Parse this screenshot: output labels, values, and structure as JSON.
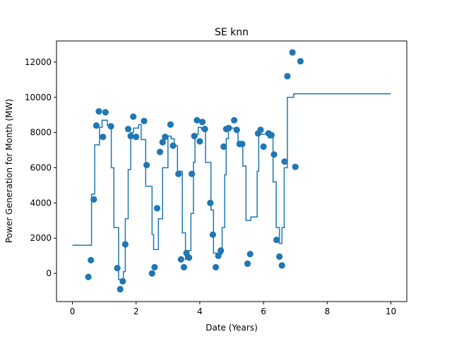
{
  "chart_data": {
    "type": "scatter",
    "title": "SE knn",
    "xlabel": "Date (Years)",
    "ylabel": "Power Generation for Month (MW)",
    "xlim": [
      -0.5,
      10.5
    ],
    "ylim": [
      -1600,
      13200
    ],
    "xticks": [
      0,
      2,
      4,
      6,
      8,
      10
    ],
    "yticks": [
      0,
      2000,
      4000,
      6000,
      8000,
      10000,
      12000
    ],
    "grid": false,
    "colors": {
      "series": "#1f77b4"
    },
    "series": [
      {
        "kind": "scatter",
        "points": [
          [
            0.5,
            -200
          ],
          [
            0.58,
            750
          ],
          [
            0.67,
            4200
          ],
          [
            0.75,
            8400
          ],
          [
            0.83,
            9200
          ],
          [
            0.96,
            7750
          ],
          [
            1.04,
            9150
          ],
          [
            1.21,
            8350
          ],
          [
            1.41,
            300
          ],
          [
            1.5,
            -900
          ],
          [
            1.58,
            -450
          ],
          [
            1.66,
            1650
          ],
          [
            1.75,
            8200
          ],
          [
            1.83,
            7800
          ],
          [
            1.91,
            8900
          ],
          [
            2.0,
            7750
          ],
          [
            2.25,
            8650
          ],
          [
            2.33,
            6150
          ],
          [
            2.5,
            0
          ],
          [
            2.58,
            350
          ],
          [
            2.66,
            3700
          ],
          [
            2.75,
            6900
          ],
          [
            2.83,
            7450
          ],
          [
            2.91,
            7750
          ],
          [
            3.08,
            8450
          ],
          [
            3.16,
            7250
          ],
          [
            3.33,
            5650
          ],
          [
            3.41,
            800
          ],
          [
            3.5,
            350
          ],
          [
            3.58,
            1150
          ],
          [
            3.66,
            900
          ],
          [
            3.75,
            5650
          ],
          [
            3.83,
            7800
          ],
          [
            3.91,
            8700
          ],
          [
            4.0,
            7500
          ],
          [
            4.08,
            8600
          ],
          [
            4.16,
            8200
          ],
          [
            4.33,
            4000
          ],
          [
            4.41,
            2200
          ],
          [
            4.5,
            350
          ],
          [
            4.58,
            1000
          ],
          [
            4.66,
            1300
          ],
          [
            4.75,
            7200
          ],
          [
            4.83,
            8200
          ],
          [
            4.91,
            8250
          ],
          [
            5.08,
            8700
          ],
          [
            5.16,
            8150
          ],
          [
            5.25,
            7350
          ],
          [
            5.33,
            7350
          ],
          [
            5.5,
            550
          ],
          [
            5.58,
            1100
          ],
          [
            5.83,
            7950
          ],
          [
            5.91,
            8150
          ],
          [
            6.0,
            7200
          ],
          [
            6.16,
            7950
          ],
          [
            6.25,
            7850
          ],
          [
            6.33,
            6750
          ],
          [
            6.41,
            1900
          ],
          [
            6.5,
            950
          ],
          [
            6.58,
            450
          ],
          [
            6.66,
            6350
          ],
          [
            6.75,
            11200
          ],
          [
            6.91,
            12550
          ],
          [
            7.0,
            6050
          ],
          [
            7.16,
            12050
          ]
        ]
      },
      {
        "kind": "step",
        "points": [
          [
            0,
            1600
          ],
          [
            0.6,
            1600
          ],
          [
            0.6,
            4500
          ],
          [
            0.7,
            4500
          ],
          [
            0.7,
            7300
          ],
          [
            0.85,
            7300
          ],
          [
            0.85,
            8300
          ],
          [
            0.93,
            8300
          ],
          [
            0.93,
            8700
          ],
          [
            1.1,
            8700
          ],
          [
            1.1,
            8400
          ],
          [
            1.22,
            8400
          ],
          [
            1.22,
            6000
          ],
          [
            1.3,
            6000
          ],
          [
            1.3,
            2600
          ],
          [
            1.45,
            2600
          ],
          [
            1.45,
            -350
          ],
          [
            1.6,
            -350
          ],
          [
            1.6,
            100
          ],
          [
            1.66,
            100
          ],
          [
            1.66,
            3100
          ],
          [
            1.75,
            3100
          ],
          [
            1.75,
            5900
          ],
          [
            1.83,
            5900
          ],
          [
            1.83,
            8000
          ],
          [
            1.92,
            8000
          ],
          [
            1.92,
            8250
          ],
          [
            2.08,
            8250
          ],
          [
            2.08,
            8450
          ],
          [
            2.16,
            8450
          ],
          [
            2.16,
            7600
          ],
          [
            2.3,
            7600
          ],
          [
            2.3,
            4950
          ],
          [
            2.5,
            4950
          ],
          [
            2.5,
            2200
          ],
          [
            2.55,
            2200
          ],
          [
            2.55,
            1350
          ],
          [
            2.7,
            1350
          ],
          [
            2.7,
            3100
          ],
          [
            2.83,
            3100
          ],
          [
            2.83,
            6000
          ],
          [
            3.0,
            6000
          ],
          [
            3.0,
            7800
          ],
          [
            3.1,
            7800
          ],
          [
            3.1,
            7650
          ],
          [
            3.2,
            7650
          ],
          [
            3.2,
            7250
          ],
          [
            3.3,
            7250
          ],
          [
            3.3,
            5800
          ],
          [
            3.45,
            5800
          ],
          [
            3.45,
            2300
          ],
          [
            3.55,
            2300
          ],
          [
            3.55,
            800
          ],
          [
            3.6,
            800
          ],
          [
            3.6,
            1300
          ],
          [
            3.72,
            1300
          ],
          [
            3.72,
            3400
          ],
          [
            3.8,
            3400
          ],
          [
            3.8,
            6300
          ],
          [
            3.85,
            6300
          ],
          [
            3.85,
            7900
          ],
          [
            3.95,
            7900
          ],
          [
            3.95,
            8300
          ],
          [
            4.05,
            8300
          ],
          [
            4.05,
            8200
          ],
          [
            4.18,
            8200
          ],
          [
            4.18,
            6300
          ],
          [
            4.35,
            6300
          ],
          [
            4.35,
            3600
          ],
          [
            4.43,
            3600
          ],
          [
            4.43,
            1150
          ],
          [
            4.6,
            1150
          ],
          [
            4.6,
            1100
          ],
          [
            4.7,
            1100
          ],
          [
            4.7,
            2600
          ],
          [
            4.78,
            2600
          ],
          [
            4.78,
            5600
          ],
          [
            4.83,
            5600
          ],
          [
            4.83,
            7650
          ],
          [
            4.9,
            7650
          ],
          [
            4.9,
            8250
          ],
          [
            5.1,
            8250
          ],
          [
            5.1,
            8050
          ],
          [
            5.2,
            8050
          ],
          [
            5.2,
            7400
          ],
          [
            5.35,
            7400
          ],
          [
            5.35,
            6100
          ],
          [
            5.45,
            6100
          ],
          [
            5.45,
            3000
          ],
          [
            5.6,
            3000
          ],
          [
            5.6,
            3200
          ],
          [
            5.8,
            3200
          ],
          [
            5.8,
            5800
          ],
          [
            5.85,
            5800
          ],
          [
            5.85,
            7900
          ],
          [
            6.15,
            7900
          ],
          [
            6.15,
            7700
          ],
          [
            6.3,
            7700
          ],
          [
            6.3,
            5200
          ],
          [
            6.4,
            5200
          ],
          [
            6.4,
            2600
          ],
          [
            6.5,
            2600
          ],
          [
            6.5,
            1700
          ],
          [
            6.58,
            1700
          ],
          [
            6.58,
            2600
          ],
          [
            6.65,
            2600
          ],
          [
            6.65,
            6000
          ],
          [
            6.75,
            6000
          ],
          [
            6.75,
            10000
          ],
          [
            6.95,
            10000
          ],
          [
            6.95,
            10200
          ],
          [
            10,
            10200
          ]
        ]
      }
    ]
  }
}
